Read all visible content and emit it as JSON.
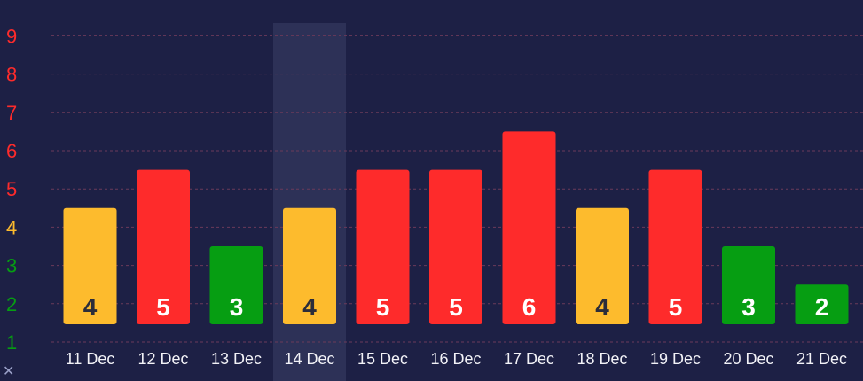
{
  "chart_data": {
    "type": "bar",
    "title": "",
    "xlabel": "",
    "ylabel": "",
    "ylim": [
      1,
      9
    ],
    "yticks": [
      1,
      2,
      3,
      4,
      5,
      6,
      7,
      8,
      9
    ],
    "grid": true,
    "highlighted_category": "14 Dec",
    "categories": [
      "11 Dec",
      "12 Dec",
      "13 Dec",
      "14 Dec",
      "15 Dec",
      "16 Dec",
      "17 Dec",
      "18 Dec",
      "19 Dec",
      "20 Dec",
      "21 Dec"
    ],
    "values": [
      4,
      5,
      3,
      4,
      5,
      5,
      6,
      4,
      5,
      3,
      2
    ],
    "data_labels": [
      "4",
      "5",
      "3",
      "4",
      "5",
      "5",
      "6",
      "4",
      "5",
      "3",
      "2"
    ]
  },
  "colors": {
    "background": "#1d2045",
    "highlight_band": "#2d3157",
    "low": "#069e12",
    "medium": "#fdbb2d",
    "high": "#fe2b2b",
    "label_dark": "#2b2d3a",
    "label_light": "#ffffff",
    "grid": "#6b3a5a"
  },
  "icons": {
    "corner": "close-icon"
  }
}
